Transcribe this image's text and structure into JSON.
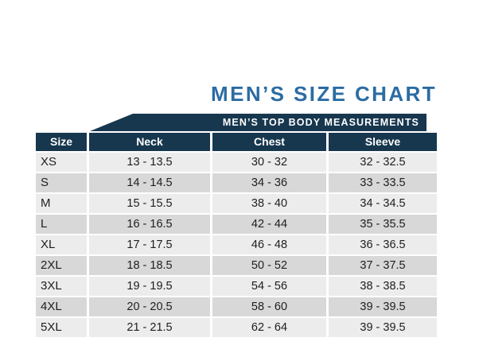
{
  "title": "MEN’S SIZE CHART",
  "banner": "MEN’S TOP BODY MEASUREMENTS",
  "table": {
    "columns": [
      "Size",
      "Neck",
      "Chest",
      "Sleeve"
    ],
    "rows": [
      {
        "size": "XS",
        "neck": "13 - 13.5",
        "chest": "30 - 32",
        "sleeve": "32 - 32.5"
      },
      {
        "size": "S",
        "neck": "14 - 14.5",
        "chest": "34 - 36",
        "sleeve": "33 - 33.5"
      },
      {
        "size": "M",
        "neck": "15 - 15.5",
        "chest": "38 - 40",
        "sleeve": "34 - 34.5"
      },
      {
        "size": "L",
        "neck": "16 - 16.5",
        "chest": "42 - 44",
        "sleeve": "35 - 35.5"
      },
      {
        "size": "XL",
        "neck": "17 - 17.5",
        "chest": "46 - 48",
        "sleeve": "36 - 36.5"
      },
      {
        "size": "2XL",
        "neck": "18 - 18.5",
        "chest": "50 - 52",
        "sleeve": "37 - 37.5"
      },
      {
        "size": "3XL",
        "neck": "19 - 19.5",
        "chest": "54 - 56",
        "sleeve": "38 - 38.5"
      },
      {
        "size": "4XL",
        "neck": "20 - 20.5",
        "chest": "58 - 60",
        "sleeve": "39 - 39.5"
      },
      {
        "size": "5XL",
        "neck": "21 - 21.5",
        "chest": "62 - 64",
        "sleeve": "39 - 39.5"
      }
    ]
  },
  "theme": {
    "colors": {
      "accent": "#2b6ca3",
      "navy": "#17374e",
      "row-light": "#ececec",
      "row-dark": "#d8d8d8",
      "cell-text": "#1e1e1e"
    }
  }
}
